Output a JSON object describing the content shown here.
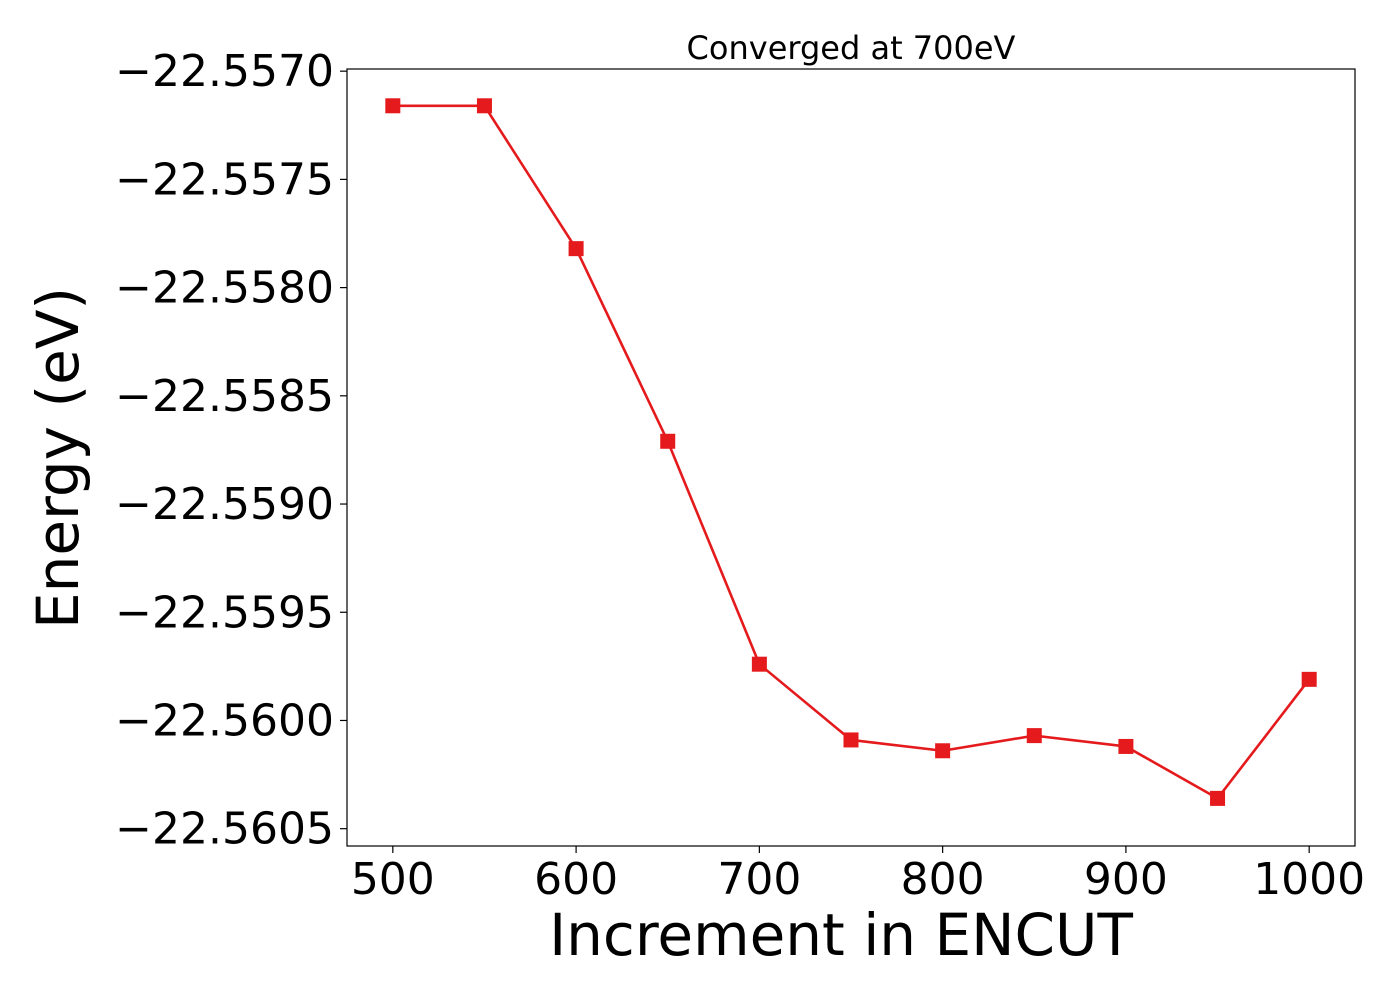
{
  "chart_data": {
    "type": "line",
    "title": "Converged at 700eV",
    "xlabel": "Increment in ENCUT",
    "ylabel": "Energy (eV)",
    "x": [
      500,
      550,
      600,
      650,
      700,
      750,
      800,
      850,
      900,
      950,
      1000
    ],
    "series": [
      {
        "values": [
          -22.55716,
          -22.55716,
          -22.55782,
          -22.55871,
          -22.55974,
          -22.56009,
          -22.56014,
          -22.56007,
          -22.56012,
          -22.56036,
          -22.55981
        ],
        "color": "#e41a1c",
        "marker": "square"
      }
    ],
    "xlim": [
      475,
      1025
    ],
    "ylim": [
      -22.56058,
      -22.55699
    ],
    "xticks": [
      500,
      600,
      700,
      800,
      900,
      1000
    ],
    "xtick_labels": [
      "500",
      "600",
      "700",
      "800",
      "900",
      "1000"
    ],
    "yticks": [
      -22.557,
      -22.5575,
      -22.558,
      -22.5585,
      -22.559,
      -22.5595,
      -22.56,
      -22.5605
    ],
    "ytick_labels": [
      "−22.5570",
      "−22.5575",
      "−22.5580",
      "−22.5585",
      "−22.5590",
      "−22.5595",
      "−22.5600",
      "−22.5605"
    ],
    "grid": false,
    "legend": false
  }
}
